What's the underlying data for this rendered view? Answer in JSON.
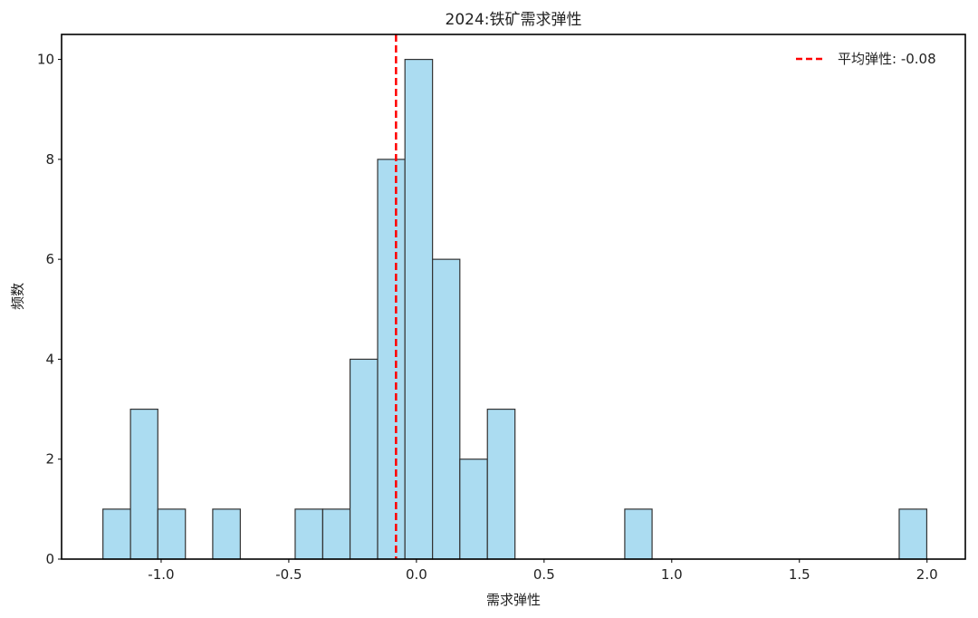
{
  "chart_data": {
    "type": "bar",
    "title": "2024:铁矿需求弹性",
    "xlabel": "需求弹性",
    "ylabel": "频数",
    "xlim": [
      -1.39,
      2.15
    ],
    "ylim": [
      0,
      10.5
    ],
    "grid": false,
    "x_ticks": {
      "values": [
        -1.0,
        -0.5,
        0.0,
        0.5,
        1.0,
        1.5,
        2.0
      ],
      "labels": [
        "-1.0",
        "-0.5",
        "0.0",
        "0.5",
        "1.0",
        "1.5",
        "2.0"
      ]
    },
    "y_ticks": {
      "values": [
        0,
        2,
        4,
        6,
        8,
        10
      ],
      "labels": [
        "0",
        "2",
        "4",
        "6",
        "8",
        "10"
      ]
    },
    "histogram": {
      "bin_edges": [
        -1.228,
        -1.12,
        -1.013,
        -0.905,
        -0.798,
        -0.69,
        -0.583,
        -0.475,
        -0.367,
        -0.26,
        -0.152,
        -0.045,
        0.063,
        0.17,
        0.278,
        0.386,
        0.493,
        0.601,
        0.708,
        0.816,
        0.923,
        1.031,
        1.138,
        1.246,
        1.354,
        1.461,
        1.569,
        1.676,
        1.784,
        1.891,
        1.999
      ],
      "counts": [
        1,
        3,
        1,
        0,
        1,
        0,
        0,
        1,
        1,
        4,
        8,
        10,
        6,
        2,
        3,
        0,
        0,
        0,
        0,
        1,
        0,
        0,
        0,
        0,
        0,
        0,
        0,
        0,
        0,
        1
      ],
      "fill_color": "#abdcf1",
      "edge_color": "#333333"
    },
    "mean_line": {
      "value": -0.08,
      "label": "平均弹性: -0.08",
      "color": "#ff0000",
      "style": "dashed"
    },
    "legend": {
      "position": "upper-right"
    }
  }
}
